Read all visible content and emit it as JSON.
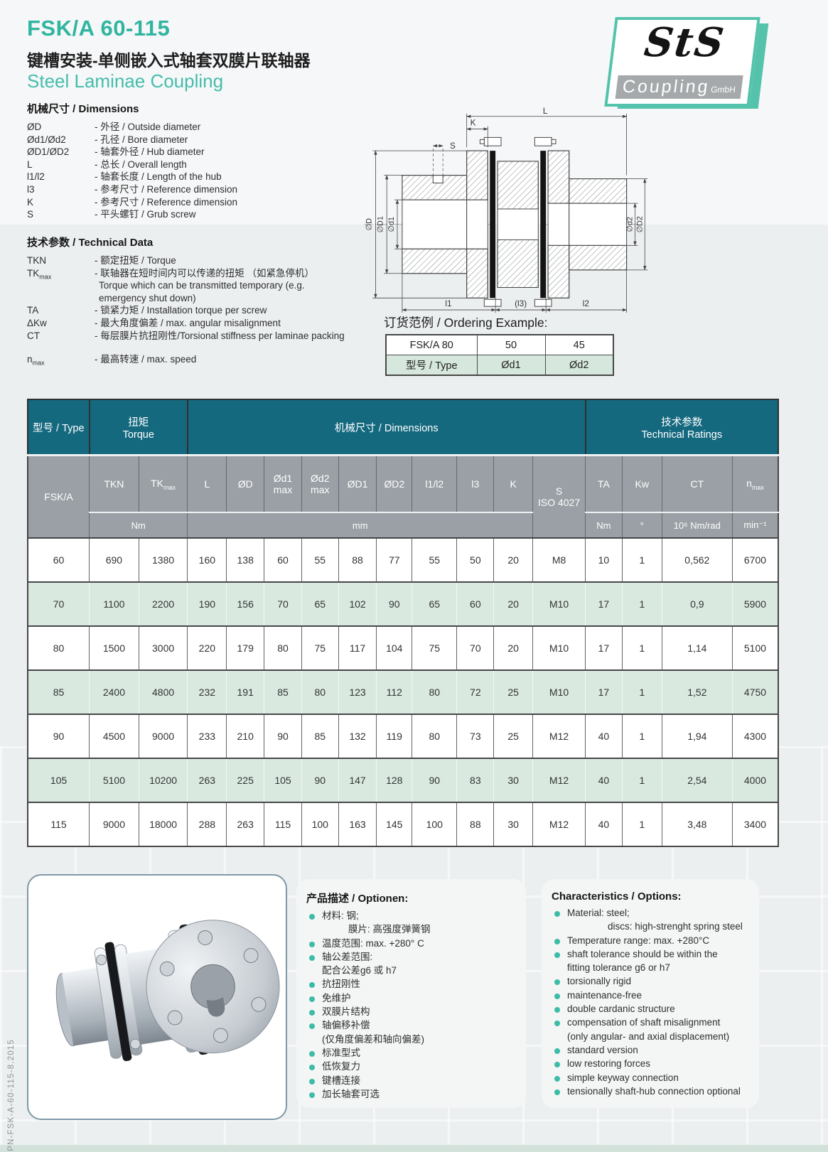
{
  "header": {
    "title": "FSK/A 60-115",
    "subtitle_zh": "键槽安装-单侧嵌入式轴套双膜片联轴器",
    "subtitle_en": "Steel Laminae Coupling"
  },
  "logo": {
    "sts": "StS",
    "coupling": "Coupling",
    "gmbh": "GmbH"
  },
  "dimensions_legend": {
    "title": "机械尺寸 / Dimensions",
    "items": [
      {
        "term": "ØD",
        "lines": [
          "- 外径 / Outside diameter"
        ]
      },
      {
        "term": "Ød1/Ød2",
        "lines": [
          "- 孔径 / Bore diameter"
        ]
      },
      {
        "term": "ØD1/ØD2",
        "lines": [
          "- 轴套外径 / Hub diameter"
        ]
      },
      {
        "term": "L",
        "lines": [
          "- 总长 / Overall length"
        ]
      },
      {
        "term": "l1/l2",
        "lines": [
          "- 轴套长度 / Length of the hub"
        ]
      },
      {
        "term": "l3",
        "lines": [
          "- 参考尺寸 / Reference dimension"
        ]
      },
      {
        "term": "K",
        "lines": [
          "- 参考尺寸 / Reference dimension"
        ]
      },
      {
        "term": "S",
        "lines": [
          "- 平头螺钉 / Grub screw"
        ]
      }
    ]
  },
  "technical_legend": {
    "title": "技术参数 / Technical Data",
    "items": [
      {
        "term": "TKN",
        "lines": [
          "- 额定扭矩 / Torque"
        ]
      },
      {
        "term": "TK",
        "sub": "max",
        "lines": [
          "- 联轴器在短时间内可以传递的扭矩 （如紧急停机）",
          "Torque which can be transmitted temporary  (e.g.",
          "emergency shut down)"
        ]
      },
      {
        "term": "TA",
        "lines": [
          "- 锁紧力矩 / Installation torque per screw"
        ]
      },
      {
        "term": "ΔKw",
        "lines": [
          "- 最大角度偏差 / max. angular misalignment"
        ]
      },
      {
        "term": "CT",
        "lines": [
          "- 每层膜片抗扭刚性/Torsional stiffness per laminae packing"
        ]
      },
      {
        "term": "n",
        "sub": "max",
        "gap": true,
        "lines": [
          "- 最高转速 / max. speed"
        ]
      }
    ]
  },
  "diagram": {
    "labels": {
      "L": "L",
      "K": "K",
      "S": "S",
      "d_outer": "∅D",
      "d_hub1": "∅D1",
      "d_bore1": "∅d1",
      "d_bore2": "∅d2",
      "d_hub2": "∅D2",
      "l1": "l1",
      "l3": "(l3)",
      "l2": "l2"
    }
  },
  "ordering": {
    "title": "订货范例 / Ordering Example:",
    "example_row": [
      "FSK/A 80",
      "50",
      "45"
    ],
    "label_row": [
      "型号 / Type",
      "Ød1",
      "Ød2"
    ]
  },
  "main_table": {
    "group_row": {
      "type": "型号 / Type",
      "torque_lines": [
        "扭矩",
        "Torque"
      ],
      "dimensions": "机械尺寸 / Dimensions",
      "ratings_lines": [
        "技术参数",
        "Technical Ratings"
      ]
    },
    "series": "FSK/A",
    "columns": [
      {
        "t": "TKN"
      },
      {
        "t": "TK",
        "sub": "max"
      },
      {
        "t": "L"
      },
      {
        "t": "ØD"
      },
      {
        "t": "Ød1",
        "l2": "max"
      },
      {
        "t": "Ød2",
        "l2": "max"
      },
      {
        "t": "ØD1"
      },
      {
        "t": "ØD2"
      },
      {
        "t": "l1/l2"
      },
      {
        "t": "l3"
      },
      {
        "t": "K"
      },
      {
        "t": "S",
        "l2": "ISO 4027",
        "tall": true
      },
      {
        "t": "TA"
      },
      {
        "t": "Kw"
      },
      {
        "t": "CT"
      },
      {
        "t": "n",
        "sub": "max"
      }
    ],
    "units_row": [
      {
        "t": "Nm",
        "cols": 2
      },
      {
        "t": "mm",
        "cols": 9
      },
      {
        "t": "Nm"
      },
      {
        "t": "°"
      },
      {
        "t": "10⁶ Nm/rad"
      },
      {
        "t": "min⁻¹"
      }
    ],
    "rows": [
      {
        "type": "60",
        "green": false,
        "v": [
          "690",
          "1380",
          "160",
          "138",
          "60",
          "55",
          "88",
          "77",
          "55",
          "50",
          "20",
          "M8",
          "10",
          "1",
          "0,562",
          "6700"
        ]
      },
      {
        "type": "70",
        "green": true,
        "v": [
          "1100",
          "2200",
          "190",
          "156",
          "70",
          "65",
          "102",
          "90",
          "65",
          "60",
          "20",
          "M10",
          "17",
          "1",
          "0,9",
          "5900"
        ]
      },
      {
        "type": "80",
        "green": false,
        "v": [
          "1500",
          "3000",
          "220",
          "179",
          "80",
          "75",
          "117",
          "104",
          "75",
          "70",
          "20",
          "M10",
          "17",
          "1",
          "1,14",
          "5100"
        ]
      },
      {
        "type": "85",
        "green": true,
        "v": [
          "2400",
          "4800",
          "232",
          "191",
          "85",
          "80",
          "123",
          "112",
          "80",
          "72",
          "25",
          "M10",
          "17",
          "1",
          "1,52",
          "4750"
        ]
      },
      {
        "type": "90",
        "green": false,
        "v": [
          "4500",
          "9000",
          "233",
          "210",
          "90",
          "85",
          "132",
          "119",
          "80",
          "73",
          "25",
          "M12",
          "40",
          "1",
          "1,94",
          "4300"
        ]
      },
      {
        "type": "105",
        "green": true,
        "v": [
          "5100",
          "10200",
          "263",
          "225",
          "105",
          "90",
          "147",
          "128",
          "90",
          "83",
          "30",
          "M12",
          "40",
          "1",
          "2,54",
          "4000"
        ]
      },
      {
        "type": "115",
        "green": false,
        "v": [
          "9000",
          "18000",
          "288",
          "263",
          "115",
          "100",
          "163",
          "145",
          "100",
          "88",
          "30",
          "M12",
          "40",
          "1",
          "3,48",
          "3400"
        ]
      }
    ]
  },
  "options_zh": {
    "title": "产品描述  / Optionen:",
    "items": [
      {
        "lines": [
          "材料: 钢;",
          "膜片: 高强度弹簧钢"
        ],
        "indent2": 37
      },
      {
        "lines": [
          "温度范围: max. +280° C"
        ]
      },
      {
        "lines": [
          "轴公差范围:",
          "配合公差g6 或 h7"
        ],
        "indent2": 0
      },
      {
        "lines": [
          "抗扭刚性"
        ]
      },
      {
        "lines": [
          "免维护"
        ]
      },
      {
        "lines": [
          "双膜片结构"
        ]
      },
      {
        "lines": [
          "轴偏移补偿",
          "(仅角度偏差和轴向偏差)"
        ],
        "indent2": 0
      },
      {
        "lines": [
          "标准型式"
        ]
      },
      {
        "lines": [
          "低恢复力"
        ]
      },
      {
        "lines": [
          "键槽连接"
        ]
      },
      {
        "lines": [
          "加长轴套可选"
        ]
      }
    ]
  },
  "options_en": {
    "title": "Characteristics / Options:",
    "items": [
      {
        "lines": [
          "Material: steel;",
          "discs: high-strenght spring steel"
        ],
        "indent2": 57
      },
      {
        "lines": [
          "Temperature range: max. +280°C"
        ]
      },
      {
        "lines": [
          "shaft  tolerance should be within the",
          "fitting tolerance g6 or h7"
        ],
        "indent2": 0
      },
      {
        "lines": [
          "torsionally rigid"
        ]
      },
      {
        "lines": [
          "maintenance-free"
        ]
      },
      {
        "lines": [
          "double cardanic structure"
        ]
      },
      {
        "lines": [
          "compensation of shaft misalignment",
          "(only angular- and axial displacement)"
        ],
        "indent2": 0
      },
      {
        "lines": [
          "standard version"
        ]
      },
      {
        "lines": [
          "low restoring forces"
        ]
      },
      {
        "lines": [
          "simple keyway connection"
        ]
      },
      {
        "lines": [
          "tensionally shaft-hub connection optional"
        ]
      }
    ]
  },
  "footer": {
    "code": "PN-FSK-A-60-115-8.2015"
  }
}
